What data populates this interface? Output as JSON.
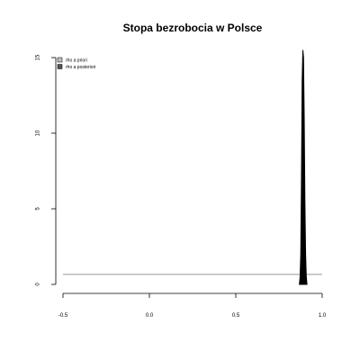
{
  "chart_data": {
    "type": "area",
    "title": "Stopa bezrobocia w Polsce",
    "xlabel": "",
    "ylabel": "",
    "xlim": [
      -0.5,
      1.0
    ],
    "ylim": [
      0,
      15
    ],
    "x_ticks": [
      -0.5,
      0.0,
      0.5,
      1.0
    ],
    "x_tick_labels": [
      "-0.5",
      "0.0",
      "0.5",
      "1.0"
    ],
    "y_ticks": [
      0,
      5,
      10,
      15
    ],
    "y_tick_labels": [
      "0",
      "5",
      "10",
      "15"
    ],
    "grid": false,
    "legend_position": "top-left",
    "series": [
      {
        "name": "rho a priori",
        "type": "line",
        "color": "#bebebe",
        "x": [
          -0.5,
          1.0
        ],
        "y": [
          0.667,
          0.667
        ]
      },
      {
        "name": "rho a posteriori",
        "type": "density",
        "color": "#000000",
        "x": [
          0.868,
          0.872,
          0.876,
          0.88,
          0.884,
          0.888,
          0.892,
          0.896,
          0.9,
          0.904,
          0.908,
          0.912
        ],
        "y": [
          0.0,
          0.5,
          2.0,
          7.0,
          13.5,
          15.5,
          15.0,
          11.0,
          5.5,
          2.0,
          0.5,
          0.0
        ]
      }
    ]
  }
}
